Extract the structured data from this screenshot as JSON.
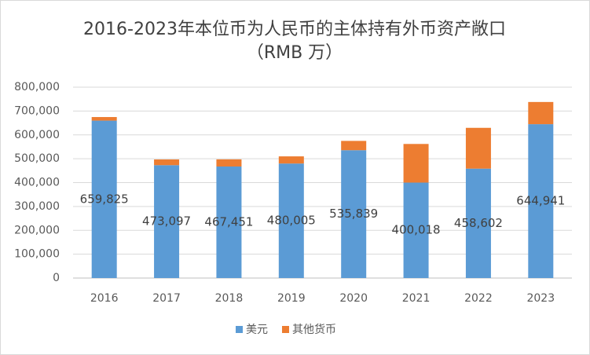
{
  "chart_data": {
    "type": "stacked_bar",
    "title": "2016-2023年本位币为人民币的主体持有外币资产敞口",
    "subtitle": "（RMB 万）",
    "categories": [
      "2016",
      "2017",
      "2018",
      "2019",
      "2020",
      "2021",
      "2022",
      "2023"
    ],
    "series": [
      {
        "name": "美元",
        "color": "#5b9bd5",
        "values": [
          659825,
          473097,
          467451,
          480005,
          535839,
          400018,
          458602,
          644941
        ],
        "value_labels": [
          "659,825",
          "473,097",
          "467,451",
          "480,005",
          "535,839",
          "400,018",
          "458,602",
          "644,941"
        ]
      },
      {
        "name": "其他货币",
        "color": "#ed7d31",
        "values": [
          15000,
          24000,
          30000,
          30000,
          39000,
          162000,
          171000,
          93000
        ]
      }
    ],
    "ylim": [
      0,
      800000
    ],
    "yticks": [
      {
        "value": 0,
        "label": "0"
      },
      {
        "value": 100000,
        "label": "100,000"
      },
      {
        "value": 200000,
        "label": "200,000"
      },
      {
        "value": 300000,
        "label": "300,000"
      },
      {
        "value": 400000,
        "label": "400,000"
      },
      {
        "value": 500000,
        "label": "500,000"
      },
      {
        "value": 600000,
        "label": "600,000"
      },
      {
        "value": 700000,
        "label": "700,000"
      },
      {
        "value": 800000,
        "label": "800,000"
      }
    ],
    "grid": true,
    "legend": "bottom"
  }
}
